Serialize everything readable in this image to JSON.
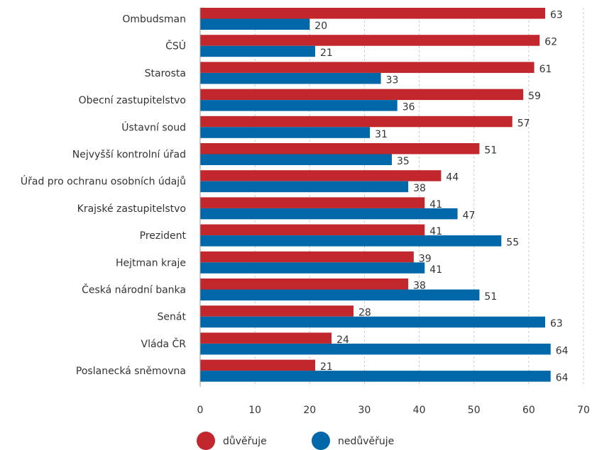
{
  "chart_data": {
    "type": "bar",
    "orientation": "horizontal",
    "categories": [
      "Ombudsman",
      "ČSÚ",
      "Starosta",
      "Obecní zastupitelstvo",
      "Ústavní soud",
      "Nejvyšší kontrolní úřad",
      "Úřad pro ochranu osobních údajů",
      "Krajské zastupitelstvo",
      "Prezident",
      "Hejtman kraje",
      "Česká národní banka",
      "Senát",
      "Vláda ČR",
      "Poslanecká sněmovna"
    ],
    "series": [
      {
        "name": "důvěřuje",
        "color": "#c1272d",
        "values": [
          63,
          62,
          61,
          59,
          57,
          51,
          44,
          41,
          41,
          39,
          38,
          28,
          24,
          21
        ]
      },
      {
        "name": "nedůvěřuje",
        "color": "#0068a8",
        "values": [
          20,
          21,
          33,
          36,
          31,
          35,
          38,
          47,
          55,
          41,
          51,
          63,
          64,
          64
        ]
      }
    ],
    "xlim": [
      0,
      70
    ],
    "xticks": [
      "0",
      "10",
      "20",
      "30",
      "40",
      "50",
      "60",
      "70"
    ],
    "grid": true,
    "legend_position": "bottom-left"
  }
}
